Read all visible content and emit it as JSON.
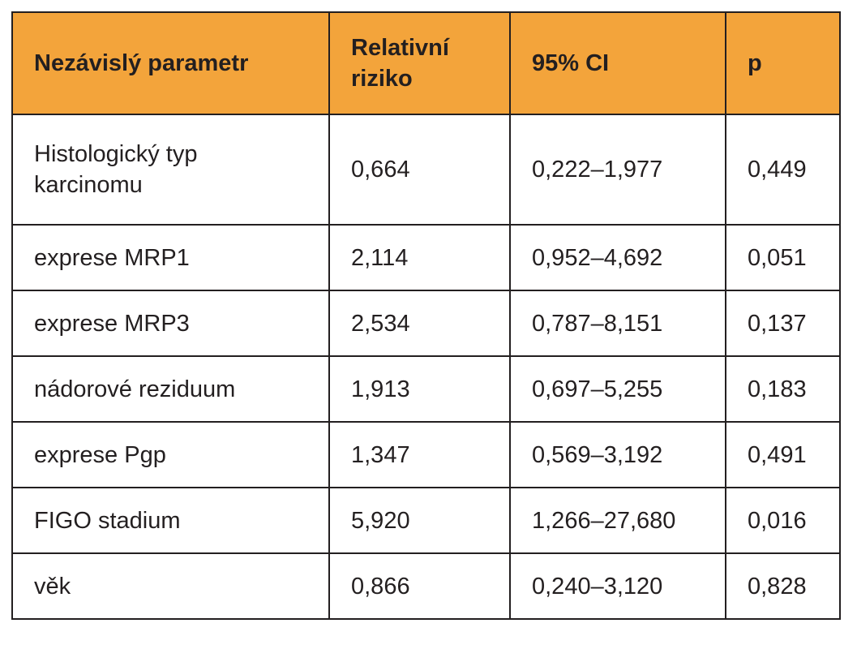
{
  "table": {
    "headers": [
      "Nezávislý parametr",
      "Relativní riziko",
      "95% CI",
      "p"
    ],
    "rows": [
      {
        "parameter": "Histologický typ karcinomu",
        "rr": "0,664",
        "ci": "0,222–1,977",
        "p": "0,449"
      },
      {
        "parameter": "exprese MRP1",
        "rr": "2,114",
        "ci": "0,952–4,692",
        "p": "0,051"
      },
      {
        "parameter": "exprese MRP3",
        "rr": "2,534",
        "ci": "0,787–8,151",
        "p": "0,137"
      },
      {
        "parameter": "nádorové reziduum",
        "rr": "1,913",
        "ci": "0,697–5,255",
        "p": "0,183"
      },
      {
        "parameter": "exprese Pgp",
        "rr": "1,347",
        "ci": "0,569–3,192",
        "p": "0,491"
      },
      {
        "parameter": "FIGO stadium",
        "rr": "5,920",
        "ci": "1,266–27,680",
        "p": "0,016"
      },
      {
        "parameter": "věk",
        "rr": "0,866",
        "ci": "0,240–3,120",
        "p": "0,828"
      }
    ]
  },
  "colors": {
    "header_background": "#f3a43b",
    "border": "#231f20",
    "text": "#231f20"
  }
}
